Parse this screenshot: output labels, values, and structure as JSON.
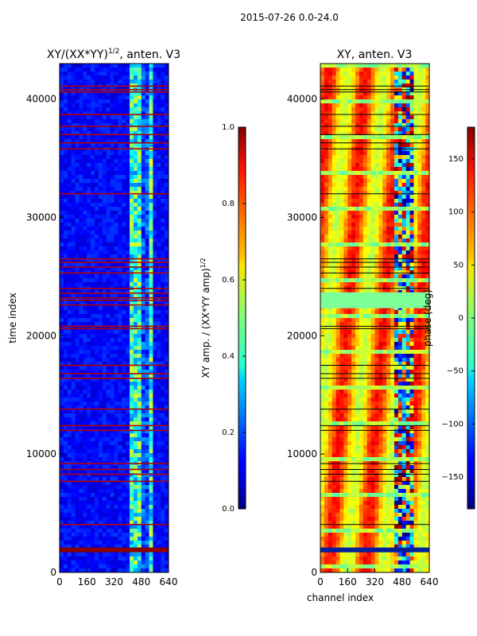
{
  "figure_title": "2015-07-26 0.0-24.0",
  "chart_data": [
    {
      "type": "heatmap",
      "title": "XY/(XX*YY)^1/2, anten. V3",
      "title_main": "XY/(XX*YY)",
      "title_exp": "1/2",
      "title_tail": ", anten. V3",
      "xlabel": "",
      "ylabel": "time index",
      "xlim": [
        0,
        640
      ],
      "ylim": [
        0,
        43000
      ],
      "xticks": [
        0,
        160,
        320,
        480,
        640
      ],
      "yticks": [
        0,
        10000,
        20000,
        30000,
        40000
      ],
      "colormap": "jet",
      "colorbar": {
        "label_main": "XY amp. / (XX*YY amp)",
        "label_exp": "1/2",
        "range": [
          0.0,
          1.0
        ],
        "ticks": [
          "0.0",
          "0.2",
          "0.4",
          "0.6",
          "0.8",
          "1.0"
        ]
      },
      "flag_rows": [
        1850,
        4050,
        7700,
        8300,
        8700,
        9200,
        12000,
        12400,
        13800,
        16400,
        16800,
        17500,
        20600,
        20800,
        22600,
        23000,
        23200,
        23600,
        24000,
        25300,
        25800,
        26200,
        26500,
        32000,
        35800,
        36300,
        37000,
        37700,
        38700,
        40600,
        40800,
        41100
      ],
      "hot_band_channels": [
        420,
        560
      ]
    },
    {
      "type": "heatmap",
      "title": "XY, anten. V3",
      "xlabel": "channel index",
      "ylabel": "",
      "xlim": [
        0,
        640
      ],
      "ylim": [
        0,
        43000
      ],
      "xticks": [
        0,
        160,
        320,
        480,
        640
      ],
      "yticks": [
        0,
        10000,
        20000,
        30000,
        40000
      ],
      "colormap": "jet",
      "colorbar": {
        "label": "phase (deg)",
        "range": [
          -180,
          180
        ],
        "ticks": [
          "−150",
          "−100",
          "−50",
          "0",
          "50",
          "100",
          "150"
        ]
      }
    }
  ]
}
